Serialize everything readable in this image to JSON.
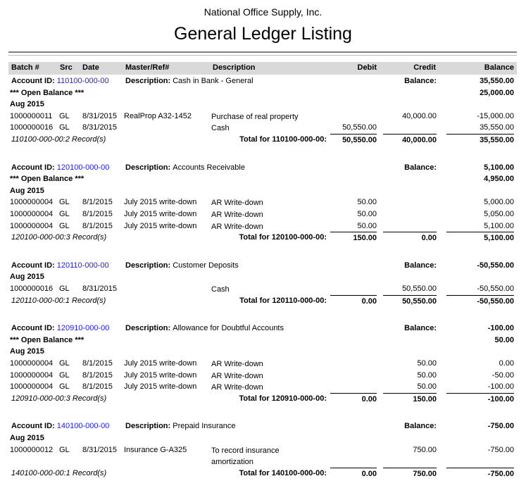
{
  "company": "National Office Supply, Inc.",
  "title": "General Ledger Listing",
  "columns": {
    "batch": "Batch #",
    "src": "Src",
    "date": "Date",
    "ref": "Master/Ref#",
    "desc": "Description",
    "debit": "Debit",
    "credit": "Credit",
    "balance": "Balance"
  },
  "labels": {
    "account_id": "Account ID:",
    "description": "Description:",
    "balance": "Balance:",
    "open_balance": "*** Open Balance ***"
  },
  "accounts": [
    {
      "id": "110100-000-00",
      "description": "Cash in Bank - General",
      "balance": "35,550.00",
      "open_balance": "25,000.00",
      "month": "Aug 2015",
      "transactions": [
        {
          "batch": "1000000011",
          "src": "GL",
          "date": "8/31/2015",
          "ref": "RealProp A32-1452",
          "desc": [
            "Purchase of real property"
          ],
          "debit": "",
          "credit": "40,000.00",
          "balance": "-15,000.00"
        },
        {
          "batch": "1000000016",
          "src": "GL",
          "date": "8/31/2015",
          "ref": "",
          "desc": [
            "Cash"
          ],
          "debit": "50,550.00",
          "credit": "",
          "balance": "35,550.00"
        }
      ],
      "records": "110100-000-00:2 Record(s)",
      "total_label": "Total for 110100-000-00:",
      "total_debit": "50,550.00",
      "total_credit": "40,000.00",
      "total_balance": "35,550.00"
    },
    {
      "id": "120100-000-00",
      "description": "Accounts Receivable",
      "balance": "5,100.00",
      "open_balance": "4,950.00",
      "month": "Aug 2015",
      "transactions": [
        {
          "batch": "1000000004",
          "src": "GL",
          "date": "8/1/2015",
          "ref": "July 2015 write-down",
          "desc": [
            "AR Write-down"
          ],
          "debit": "50.00",
          "credit": "",
          "balance": "5,000.00"
        },
        {
          "batch": "1000000004",
          "src": "GL",
          "date": "8/1/2015",
          "ref": "July 2015 write-down",
          "desc": [
            "AR Write-down"
          ],
          "debit": "50.00",
          "credit": "",
          "balance": "5,050.00"
        },
        {
          "batch": "1000000004",
          "src": "GL",
          "date": "8/1/2015",
          "ref": "July 2015 write-down",
          "desc": [
            "AR Write-down"
          ],
          "debit": "50.00",
          "credit": "",
          "balance": "5,100.00"
        }
      ],
      "records": "120100-000-00:3 Record(s)",
      "total_label": "Total for 120100-000-00:",
      "total_debit": "150.00",
      "total_credit": "0.00",
      "total_balance": "5,100.00"
    },
    {
      "id": "120110-000-00",
      "description": "Customer Deposits",
      "balance": "-50,550.00",
      "open_balance": null,
      "month": "Aug 2015",
      "transactions": [
        {
          "batch": "1000000016",
          "src": "GL",
          "date": "8/31/2015",
          "ref": "",
          "desc": [
            "Cash"
          ],
          "debit": "",
          "credit": "50,550.00",
          "balance": "-50,550.00"
        }
      ],
      "records": "120110-000-00:1 Record(s)",
      "total_label": "Total for 120110-000-00:",
      "total_debit": "0.00",
      "total_credit": "50,550.00",
      "total_balance": "-50,550.00"
    },
    {
      "id": "120910-000-00",
      "description": "Allowance for Doubtful Accounts",
      "balance": "-100.00",
      "open_balance": "50.00",
      "month": "Aug 2015",
      "transactions": [
        {
          "batch": "1000000004",
          "src": "GL",
          "date": "8/1/2015",
          "ref": "July 2015 write-down",
          "desc": [
            "AR Write-down"
          ],
          "debit": "",
          "credit": "50.00",
          "balance": "0.00"
        },
        {
          "batch": "1000000004",
          "src": "GL",
          "date": "8/1/2015",
          "ref": "July 2015 write-down",
          "desc": [
            "AR Write-down"
          ],
          "debit": "",
          "credit": "50.00",
          "balance": "-50.00"
        },
        {
          "batch": "1000000004",
          "src": "GL",
          "date": "8/1/2015",
          "ref": "July 2015 write-down",
          "desc": [
            "AR Write-down"
          ],
          "debit": "",
          "credit": "50.00",
          "balance": "-100.00"
        }
      ],
      "records": "120910-000-00:3 Record(s)",
      "total_label": "Total for 120910-000-00:",
      "total_debit": "0.00",
      "total_credit": "150.00",
      "total_balance": "-100.00"
    },
    {
      "id": "140100-000-00",
      "description": "Prepaid Insurance",
      "balance": "-750.00",
      "open_balance": null,
      "month": "Aug 2015",
      "transactions": [
        {
          "batch": "1000000012",
          "src": "GL",
          "date": "8/31/2015",
          "ref": "Insurance G-A325",
          "desc": [
            "To record insurance",
            "amortization"
          ],
          "debit": "",
          "credit": "750.00",
          "balance": "-750.00"
        }
      ],
      "records": "140100-000-00:1 Record(s)",
      "total_label": "Total for 140100-000-00:",
      "total_debit": "0.00",
      "total_credit": "750.00",
      "total_balance": "-750.00"
    }
  ]
}
